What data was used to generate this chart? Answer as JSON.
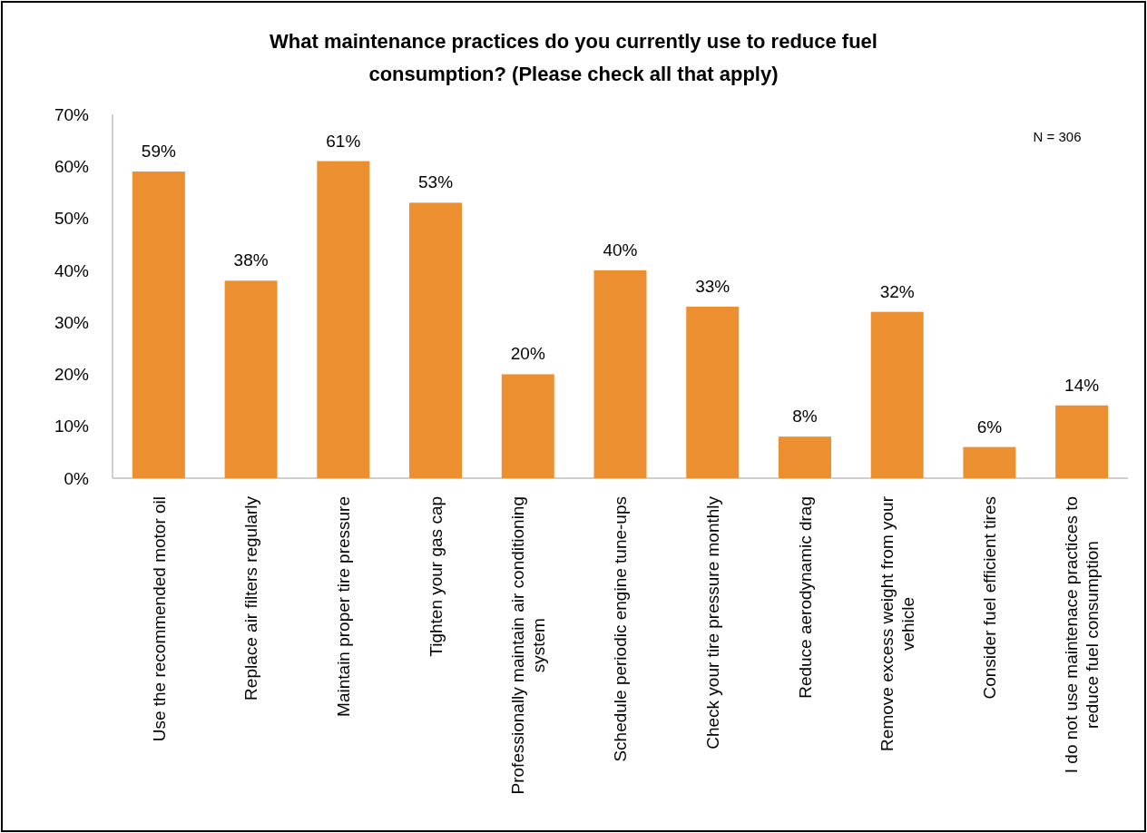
{
  "chart_data": {
    "type": "bar",
    "title": "What maintenance practices do you currently use to reduce fuel consumption? (Please check all that apply)",
    "categories": [
      "Use the recommended motor oil",
      "Replace air filters regularly",
      "Maintain proper tire pressure",
      "Tighten your gas cap",
      "Professionally maintain air conditioning system",
      "Schedule periodic engine tune-ups",
      "Check your tire pressure monthly",
      "Reduce aerodynamic drag",
      "Remove excess weight from your vehicle",
      "Consider fuel efficient tires",
      "I do not use maintenace practices to reduce fuel consumption"
    ],
    "values": [
      59,
      38,
      61,
      53,
      20,
      40,
      33,
      8,
      32,
      6,
      14
    ],
    "value_labels": [
      "59%",
      "38%",
      "61%",
      "53%",
      "20%",
      "40%",
      "33%",
      "8%",
      "32%",
      "6%",
      "14%"
    ],
    "color": "#ec8f30",
    "ylim": [
      0,
      70
    ],
    "yticks": [
      {
        "value": 0,
        "label": "0%"
      },
      {
        "value": 10,
        "label": "10%"
      },
      {
        "value": 20,
        "label": "20%"
      },
      {
        "value": 30,
        "label": "30%"
      },
      {
        "value": 40,
        "label": "40%"
      },
      {
        "value": 50,
        "label": "50%"
      },
      {
        "value": 60,
        "label": "60%"
      },
      {
        "value": 70,
        "label": "70%"
      }
    ],
    "annotations": [
      "N = 306"
    ]
  }
}
